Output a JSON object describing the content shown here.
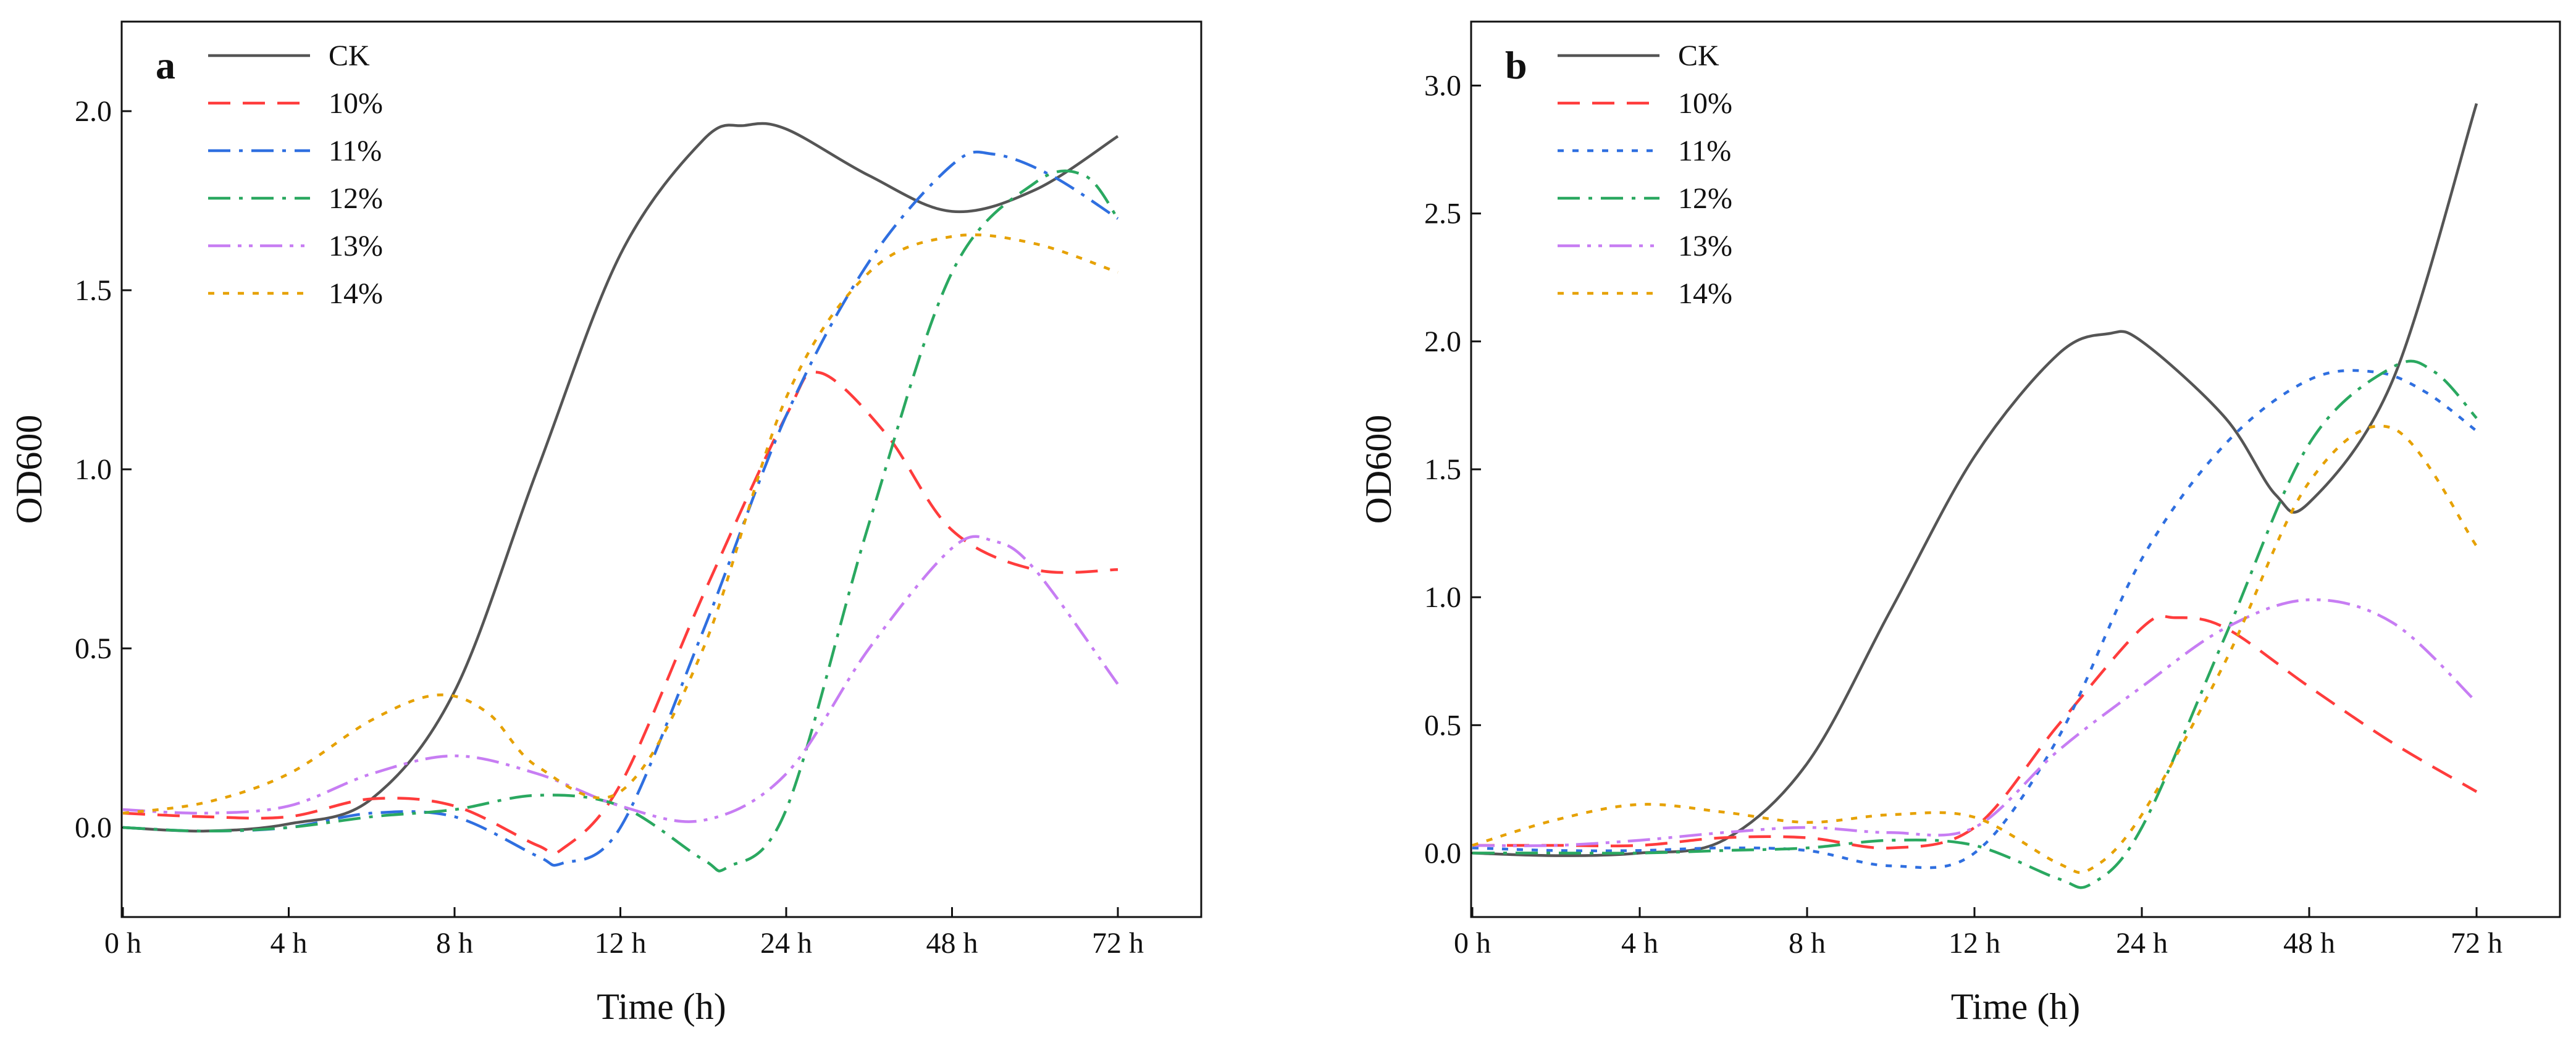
{
  "chart_data": [
    {
      "panel": "a",
      "type": "line",
      "xlabel": "Time (h)",
      "ylabel": "OD600",
      "categories": [
        "0 h",
        "4 h",
        "8 h",
        "12 h",
        "24 h",
        "48 h",
        "72 h"
      ],
      "x": [
        0,
        1,
        2,
        3,
        4,
        5,
        6
      ],
      "ylim": [
        -0.25,
        2.25
      ],
      "yticks": [
        0.0,
        0.5,
        1.0,
        1.5,
        2.0
      ],
      "ytick_labels": [
        "0.0",
        "0.5",
        "1.0",
        "1.5",
        "2.0"
      ],
      "legend_position": "top-left",
      "series": [
        {
          "name": "CK",
          "color": "#555555",
          "dash": "solid",
          "x": [
            0,
            0.5,
            1,
            1.5,
            2,
            2.5,
            3,
            3.5,
            3.75,
            4,
            4.5,
            5,
            5.5,
            6
          ],
          "y": [
            0.0,
            -0.01,
            0.01,
            0.08,
            0.38,
            1.0,
            1.6,
            1.92,
            1.96,
            1.95,
            1.82,
            1.72,
            1.78,
            1.93
          ]
        },
        {
          "name": "10%",
          "color": "#ff3c3c",
          "dash": "dashed",
          "x": [
            0,
            0.5,
            1,
            1.5,
            2,
            2.5,
            2.65,
            3,
            3.5,
            4,
            4.2,
            4.6,
            5,
            5.5,
            6
          ],
          "y": [
            0.04,
            0.03,
            0.03,
            0.08,
            0.06,
            -0.05,
            -0.06,
            0.12,
            0.65,
            1.15,
            1.27,
            1.1,
            0.83,
            0.72,
            0.72
          ]
        },
        {
          "name": "11%",
          "color": "#2f6fe0",
          "dash": "dashdot",
          "x": [
            0,
            0.5,
            1,
            1.5,
            2,
            2.5,
            2.65,
            3,
            3.5,
            4,
            4.5,
            5,
            5.25,
            5.6,
            6
          ],
          "y": [
            0.0,
            -0.01,
            0.0,
            0.04,
            0.03,
            -0.08,
            -0.1,
            0.0,
            0.55,
            1.15,
            1.58,
            1.85,
            1.88,
            1.82,
            1.7
          ]
        },
        {
          "name": "12%",
          "color": "#2aa860",
          "dash": "dashdot",
          "x": [
            0,
            0.5,
            1,
            1.5,
            2,
            2.5,
            3,
            3.5,
            3.65,
            4,
            4.5,
            5,
            5.5,
            5.8,
            6
          ],
          "y": [
            0.0,
            -0.01,
            0.0,
            0.03,
            0.05,
            0.09,
            0.06,
            -0.09,
            -0.11,
            0.05,
            0.85,
            1.55,
            1.8,
            1.82,
            1.7
          ]
        },
        {
          "name": "13%",
          "color": "#c77df3",
          "dash": "dashdotdot",
          "x": [
            0,
            0.5,
            1,
            1.5,
            2,
            2.5,
            3,
            3.5,
            4,
            4.5,
            5,
            5.25,
            5.5,
            6
          ],
          "y": [
            0.05,
            0.04,
            0.06,
            0.15,
            0.2,
            0.15,
            0.06,
            0.02,
            0.15,
            0.5,
            0.78,
            0.8,
            0.72,
            0.4
          ]
        },
        {
          "name": "14%",
          "color": "#e6a100",
          "dash": "dotted",
          "x": [
            0,
            0.5,
            1,
            1.5,
            1.9,
            2.2,
            2.5,
            3,
            3.5,
            4,
            4.5,
            5,
            5.5,
            6
          ],
          "y": [
            0.04,
            0.07,
            0.15,
            0.3,
            0.37,
            0.32,
            0.17,
            0.1,
            0.5,
            1.2,
            1.55,
            1.65,
            1.63,
            1.55
          ]
        }
      ]
    },
    {
      "panel": "b",
      "type": "line",
      "xlabel": "Time (h)",
      "ylabel": "OD600",
      "categories": [
        "0 h",
        "4 h",
        "8 h",
        "12 h",
        "24 h",
        "48 h",
        "72 h"
      ],
      "x": [
        0,
        1,
        2,
        3,
        4,
        5,
        6
      ],
      "ylim": [
        -0.25,
        3.25
      ],
      "yticks": [
        0.0,
        0.5,
        1.0,
        1.5,
        2.0,
        2.5,
        3.0
      ],
      "ytick_labels": [
        "0.0",
        "0.5",
        "1.0",
        "1.5",
        "2.0",
        "2.5",
        "3.0"
      ],
      "legend_position": "top-left",
      "series": [
        {
          "name": "CK",
          "color": "#555555",
          "dash": "solid",
          "x": [
            0,
            0.5,
            1,
            1.5,
            2,
            2.5,
            3,
            3.5,
            3.8,
            4,
            4.5,
            4.8,
            5,
            5.5,
            6
          ],
          "y": [
            0.0,
            -0.01,
            0.0,
            0.05,
            0.35,
            0.95,
            1.55,
            1.95,
            2.03,
            2.0,
            1.7,
            1.4,
            1.37,
            1.85,
            2.93
          ]
        },
        {
          "name": "10%",
          "color": "#ff3c3c",
          "dash": "dashed",
          "x": [
            0,
            0.5,
            1,
            1.5,
            2,
            2.5,
            3,
            3.5,
            4,
            4.2,
            4.5,
            5,
            5.5,
            6
          ],
          "y": [
            0.03,
            0.03,
            0.03,
            0.06,
            0.06,
            0.02,
            0.1,
            0.5,
            0.88,
            0.92,
            0.88,
            0.65,
            0.43,
            0.24
          ]
        },
        {
          "name": "11%",
          "color": "#2f6fe0",
          "dash": "dotted",
          "x": [
            0,
            0.5,
            1,
            1.5,
            2,
            2.5,
            3,
            3.5,
            4,
            4.5,
            5,
            5.4,
            5.7,
            6
          ],
          "y": [
            0.02,
            0.01,
            0.01,
            0.02,
            0.01,
            -0.05,
            0.0,
            0.45,
            1.15,
            1.6,
            1.85,
            1.88,
            1.8,
            1.65
          ]
        },
        {
          "name": "12%",
          "color": "#2aa860",
          "dash": "dashdot",
          "x": [
            0,
            0.5,
            1,
            1.5,
            2,
            2.5,
            3,
            3.5,
            3.7,
            4,
            4.5,
            5,
            5.5,
            5.75,
            6
          ],
          "y": [
            0.0,
            0.0,
            0.0,
            0.01,
            0.02,
            0.05,
            0.03,
            -0.1,
            -0.12,
            0.1,
            0.85,
            1.6,
            1.9,
            1.88,
            1.7
          ]
        },
        {
          "name": "13%",
          "color": "#c77df3",
          "dash": "dashdotdot",
          "x": [
            0,
            0.5,
            1,
            1.5,
            2,
            2.5,
            3,
            3.5,
            4,
            4.5,
            5,
            5.5,
            6
          ],
          "y": [
            0.03,
            0.03,
            0.05,
            0.08,
            0.1,
            0.08,
            0.1,
            0.4,
            0.65,
            0.88,
            0.99,
            0.9,
            0.59
          ]
        },
        {
          "name": "14%",
          "color": "#e6a100",
          "dash": "dotted",
          "x": [
            0,
            0.5,
            1,
            1.5,
            2,
            2.5,
            3,
            3.5,
            3.7,
            4,
            4.5,
            5,
            5.5,
            6
          ],
          "y": [
            0.03,
            0.13,
            0.19,
            0.16,
            0.12,
            0.15,
            0.14,
            -0.04,
            -0.06,
            0.15,
            0.75,
            1.45,
            1.66,
            1.2
          ]
        }
      ]
    }
  ]
}
